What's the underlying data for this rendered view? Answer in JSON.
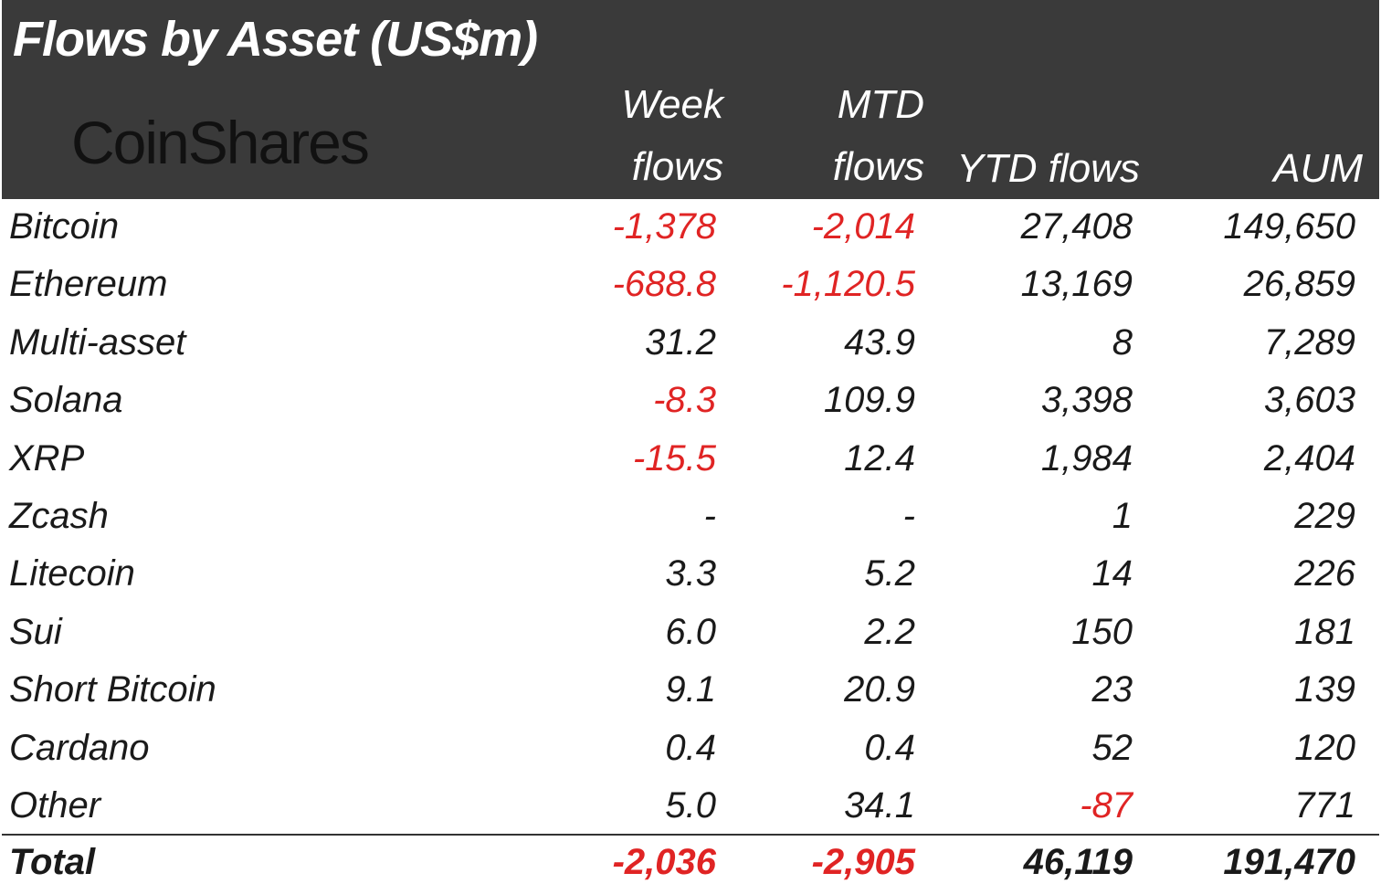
{
  "header": {
    "title": "Flows by Asset (US$m)",
    "logo_text": "CoinShares",
    "columns": [
      {
        "line1": "Week",
        "line2": "flows"
      },
      {
        "line1": "MTD",
        "line2": "flows"
      },
      {
        "line1": "",
        "line2": "YTD flows"
      },
      {
        "line1": "",
        "line2": "AUM"
      }
    ]
  },
  "colors": {
    "header_bg": "#3a3a3a",
    "negative": "#e02424",
    "text": "#1a1a1a"
  },
  "chart_data": {
    "type": "table",
    "title": "Flows by Asset (US$m)",
    "columns": [
      "Week flows",
      "MTD flows",
      "YTD flows",
      "AUM"
    ],
    "rows": [
      {
        "asset": "Bitcoin",
        "values": [
          "-1,378",
          "-2,014",
          "27,408",
          "149,650"
        ]
      },
      {
        "asset": "Ethereum",
        "values": [
          "-688.8",
          "-1,120.5",
          "13,169",
          "26,859"
        ]
      },
      {
        "asset": "Multi-asset",
        "values": [
          "31.2",
          "43.9",
          "8",
          "7,289"
        ]
      },
      {
        "asset": "Solana",
        "values": [
          "-8.3",
          "109.9",
          "3,398",
          "3,603"
        ]
      },
      {
        "asset": "XRP",
        "values": [
          "-15.5",
          "12.4",
          "1,984",
          "2,404"
        ]
      },
      {
        "asset": "Zcash",
        "values": [
          "-",
          "-",
          "1",
          "229"
        ]
      },
      {
        "asset": "Litecoin",
        "values": [
          "3.3",
          "5.2",
          "14",
          "226"
        ]
      },
      {
        "asset": "Sui",
        "values": [
          "6.0",
          "2.2",
          "150",
          "181"
        ]
      },
      {
        "asset": "Short Bitcoin",
        "values": [
          "9.1",
          "20.9",
          "23",
          "139"
        ]
      },
      {
        "asset": "Cardano",
        "values": [
          "0.4",
          "0.4",
          "52",
          "120"
        ]
      },
      {
        "asset": "Other",
        "values": [
          "5.0",
          "34.1",
          "-87",
          "771"
        ]
      }
    ],
    "total": {
      "asset": "Total",
      "values": [
        "-2,036",
        "-2,905",
        "46,119",
        "191,470"
      ]
    }
  }
}
